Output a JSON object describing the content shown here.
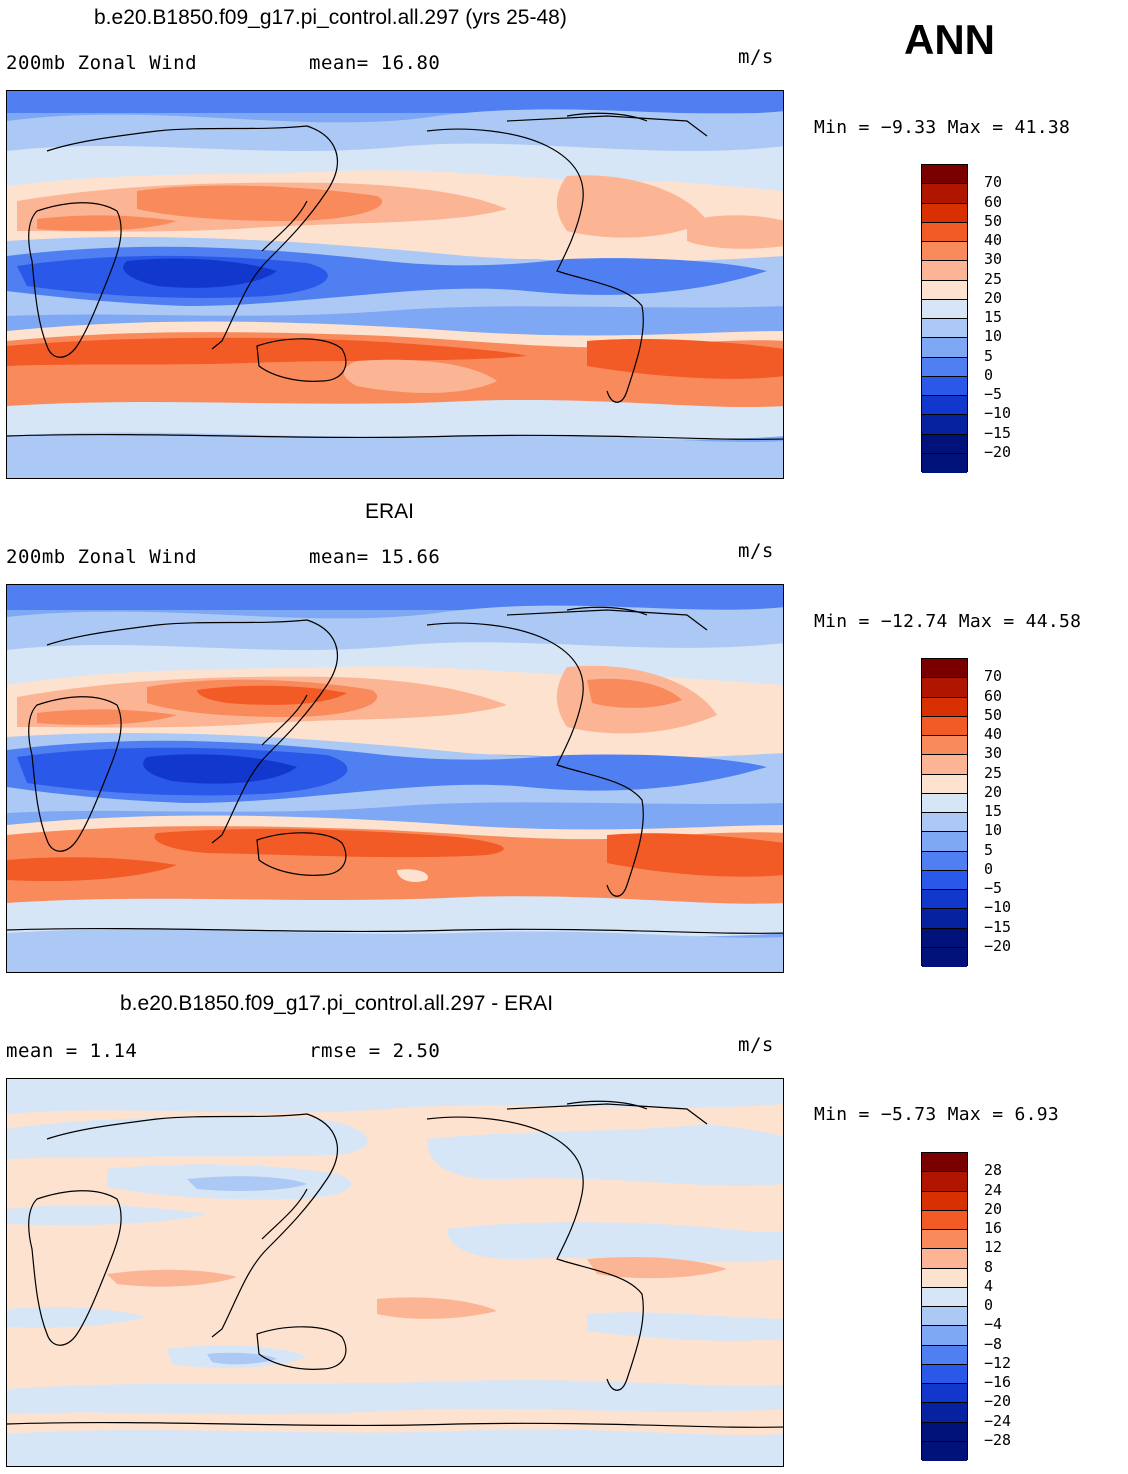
{
  "season": "ANN",
  "panels": [
    {
      "title": "b.e20.B1850.f09_g17.pi_control.all.297 (yrs 25-48)",
      "left_label": "200mb Zonal Wind",
      "mid_label": "mean=  16.80",
      "units": "m/s",
      "minmax": "Min =  −9.33 Max =  41.38",
      "cbar_labels": [
        "70",
        "60",
        "50",
        "40",
        "30",
        "25",
        "20",
        "15",
        "10",
        "5",
        "0",
        "−5",
        "−10",
        "−15",
        "−20"
      ]
    },
    {
      "title": "ERAI",
      "left_label": "200mb Zonal Wind",
      "mid_label": "mean=  15.66",
      "units": "m/s",
      "minmax": "Min = −12.74 Max =  44.58",
      "cbar_labels": [
        "70",
        "60",
        "50",
        "40",
        "30",
        "25",
        "20",
        "15",
        "10",
        "5",
        "0",
        "−5",
        "−10",
        "−15",
        "−20"
      ]
    },
    {
      "title": "b.e20.B1850.f09_g17.pi_control.all.297 - ERAI",
      "left_label": "mean =    1.14",
      "mid_label": "rmse =    2.50",
      "units": "m/s",
      "minmax": "Min =  −5.73 Max =    6.93",
      "cbar_labels": [
        "28",
        "24",
        "20",
        "16",
        "12",
        "8",
        "4",
        "0",
        "−4",
        "−8",
        "−12",
        "−16",
        "−20",
        "−24",
        "−28"
      ]
    }
  ],
  "colors": {
    "scale": [
      "#7a0000",
      "#b01500",
      "#d83000",
      "#f25a26",
      "#f98a5c",
      "#fcb594",
      "#fde2cf",
      "#d6e6f7",
      "#abc9f4",
      "#7ea8f3",
      "#4f7ff0",
      "#2a58e8",
      "#1237cc",
      "#0622a0",
      "#00127a"
    ]
  }
}
